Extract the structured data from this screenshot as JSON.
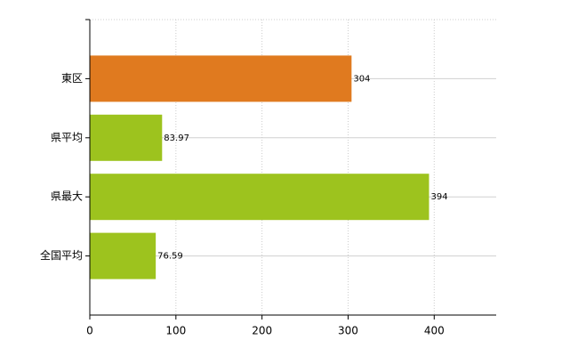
{
  "chart_data": {
    "type": "hbar",
    "categories": [
      "東区",
      "県平均",
      "県最大",
      "全国平均"
    ],
    "values": [
      304,
      83.97,
      394,
      76.59
    ],
    "colors": [
      "#e07a1f",
      "#9dc31e",
      "#9dc31e",
      "#9dc31e"
    ],
    "xlim": [
      0,
      472
    ],
    "xticks": [
      0,
      100,
      200,
      300,
      400
    ],
    "grid": true
  }
}
